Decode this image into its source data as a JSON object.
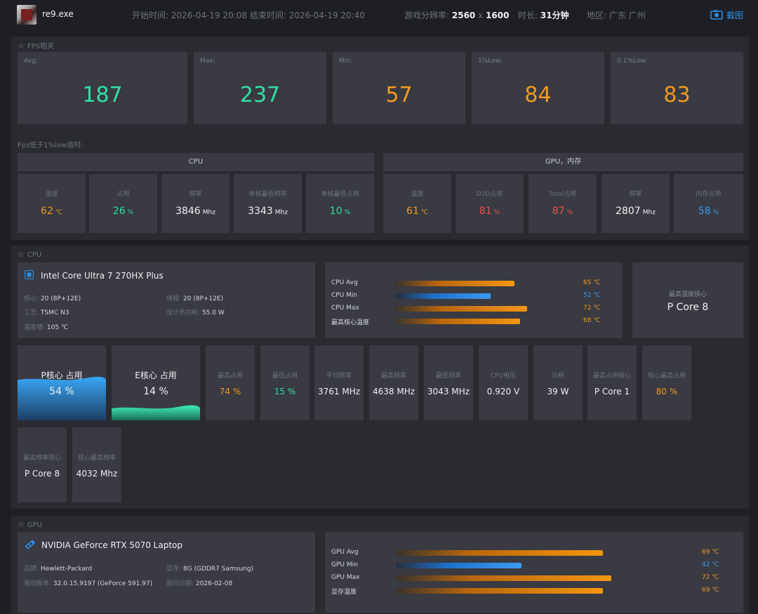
{
  "header": {
    "app_name": "re9.exe",
    "start_label": "开始时间:",
    "start_time": "2026-04-19 20:08",
    "end_label": "结束时间:",
    "end_time": "2026-04-19 20:40",
    "res_label": "游戏分辨率:",
    "res_w": "2560",
    "res_x": "x",
    "res_h": "1600",
    "duration_label": "时长:",
    "duration": "31分钟",
    "region_label": "地区:",
    "region": "广东 广州",
    "screenshot_label": "截图"
  },
  "fps": {
    "title": "FPS相关",
    "cards": [
      {
        "label": "Avg:",
        "value": "187",
        "color": "green"
      },
      {
        "label": "Max:",
        "value": "237",
        "color": "green"
      },
      {
        "label": "Min:",
        "value": "57",
        "color": "orange"
      },
      {
        "label": "1%Low:",
        "value": "84",
        "color": "orange"
      },
      {
        "label": "0.1%Low:",
        "value": "83",
        "color": "orange"
      }
    ],
    "low_title": "Fps低于1%low值时:",
    "cpu_head": "CPU",
    "gpu_head": "GPU，内存",
    "cpu_metrics": [
      {
        "label": "温度",
        "value": "62",
        "unit": "℃",
        "color": "orange"
      },
      {
        "label": "占用",
        "value": "26",
        "unit": "%",
        "color": "green"
      },
      {
        "label": "频率",
        "value": "3846",
        "unit": "Mhz",
        "color": "white"
      },
      {
        "label": "单核最低频率",
        "value": "3343",
        "unit": "Mhz",
        "color": "white"
      },
      {
        "label": "单核最低占用",
        "value": "10",
        "unit": "%",
        "color": "green"
      }
    ],
    "gpu_metrics": [
      {
        "label": "温度",
        "value": "61",
        "unit": "℃",
        "color": "orange"
      },
      {
        "label": "D3D占用",
        "value": "81",
        "unit": "%",
        "color": "red"
      },
      {
        "label": "Total占用",
        "value": "87",
        "unit": "%",
        "color": "red"
      },
      {
        "label": "频率",
        "value": "2807",
        "unit": "Mhz",
        "color": "white"
      },
      {
        "label": "内存占用",
        "value": "58",
        "unit": "%",
        "color": "blue"
      }
    ]
  },
  "cpu": {
    "title": "CPU",
    "name": "Intel Core Ultra 7 270HX Plus",
    "cores_label": "核心:",
    "cores": "20 (8P+12E)",
    "threads_label": "线程:",
    "threads": "20 (8P+12E)",
    "process_label": "工艺:",
    "process": "TSMC N3",
    "tdp_label": "设计热功耗:",
    "tdp": "55.0 W",
    "tjmax_label": "温度墙:",
    "tjmax": "105 ℃",
    "temps": [
      {
        "label": "CPU Avg",
        "value": "65 ℃",
        "color": "orange",
        "fraction": 0.65
      },
      {
        "label": "CPU Min",
        "value": "52 ℃",
        "color": "blue",
        "fraction": 0.52
      },
      {
        "label": "CPU Max",
        "value": "72 ℃",
        "color": "orange",
        "fraction": 0.72
      },
      {
        "label": "最高核心温度",
        "value": "68 ℃",
        "color": "orange",
        "fraction": 0.68
      }
    ],
    "hottest_core_label": "最高温度核心",
    "hottest_core": "P Core 8",
    "p_usage_label": "P核心 占用",
    "p_usage": "54 %",
    "p_usage_fraction": 0.54,
    "e_usage_label": "E核心 占用",
    "e_usage": "14 %",
    "e_usage_fraction": 0.14,
    "stats": [
      {
        "label": "最高占用",
        "value": "74 %",
        "color": "orange"
      },
      {
        "label": "最低占用",
        "value": "15 %",
        "color": "green"
      },
      {
        "label": "平均频率",
        "value": "3761 MHz",
        "color": "white"
      },
      {
        "label": "最高频率",
        "value": "4638 MHz",
        "color": "white"
      },
      {
        "label": "最低频率",
        "value": "3043 MHz",
        "color": "white"
      },
      {
        "label": "CPU电压",
        "value": "0.920 V",
        "color": "white"
      },
      {
        "label": "功耗",
        "value": "39 W",
        "color": "white"
      },
      {
        "label": "最高占用核心",
        "value": "P Core 1",
        "color": "white"
      },
      {
        "label": "核心最高占用",
        "value": "80 %",
        "color": "orange"
      }
    ],
    "stats2": [
      {
        "label": "最高频率核心",
        "value": "P Core 8",
        "color": "white"
      },
      {
        "label": "核心最高频率",
        "value": "4032 Mhz",
        "color": "white"
      }
    ]
  },
  "gpu": {
    "title": "GPU",
    "name": "NVIDIA GeForce RTX 5070 Laptop",
    "brand_label": "品牌:",
    "brand": "Hewlett-Packard",
    "vram_label": "显存:",
    "vram": "8G (GDDR7 Samsung)",
    "driver_label": "驱动版本:",
    "driver": "32.0.15.9197 (GeForce 591.97)",
    "date_label": "驱动日期:",
    "date": "2026-02-08",
    "temps": [
      {
        "label": "GPU Avg",
        "value": "69 ℃",
        "color": "orange",
        "fraction": 0.69
      },
      {
        "label": "GPU Min",
        "value": "42 ℃",
        "color": "blue",
        "fraction": 0.42
      },
      {
        "label": "GPU Max",
        "value": "72 ℃",
        "color": "orange",
        "fraction": 0.72
      },
      {
        "label": "显存温度",
        "value": "69 ℃",
        "color": "orange",
        "fraction": 0.69
      }
    ]
  }
}
